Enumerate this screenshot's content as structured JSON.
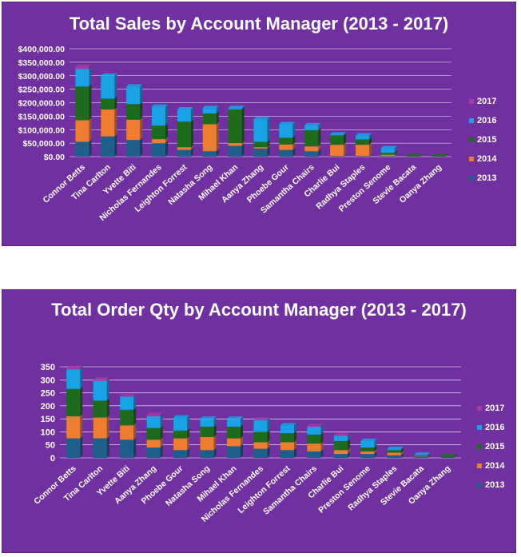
{
  "chart_data": [
    {
      "type": "bar",
      "stacked": true,
      "title": "Total Sales by Account Manager (2013 - 2017)",
      "categories": [
        "Connor Betts",
        "Tina Carlton",
        "Yvette Biti",
        "Nicholas Fernandes",
        "Leighton Forrest",
        "Natasha Song",
        "Mihael Khan",
        "Aanya Zhang",
        "Phoebe Gour",
        "Samantha Chairs",
        "Charlie Bui",
        "Radhya Staples",
        "Preston Senome",
        "Stevie Bacata",
        "Oanya Zhang"
      ],
      "ylim": [
        0,
        400000
      ],
      "yticks": [
        0,
        50000,
        100000,
        150000,
        200000,
        250000,
        300000,
        350000,
        400000
      ],
      "ytick_labels": [
        "$0.00",
        "$50,000.00",
        "$100,000.00",
        "$150,000.00",
        "$200,000.00",
        "$250,000.00",
        "$300,000.00",
        "$350,000.00",
        "$400,000.00"
      ],
      "series": [
        {
          "name": "2013",
          "values": [
            55000,
            75000,
            62000,
            50000,
            25000,
            20000,
            40000,
            30000,
            25000,
            20000,
            2000,
            2000,
            2000,
            0,
            0
          ]
        },
        {
          "name": "2014",
          "values": [
            80000,
            100000,
            75000,
            15000,
            10000,
            100000,
            10000,
            5000,
            20000,
            18000,
            42000,
            42000,
            5000,
            0,
            0
          ]
        },
        {
          "name": "2015",
          "values": [
            125000,
            40000,
            58000,
            50000,
            95000,
            40000,
            125000,
            20000,
            25000,
            60000,
            35000,
            20000,
            7000,
            2000,
            2000
          ]
        },
        {
          "name": "2016",
          "values": [
            65000,
            85000,
            65000,
            70000,
            45000,
            20000,
            5000,
            83000,
            50000,
            18000,
            3000,
            14000,
            17000,
            0,
            0
          ]
        },
        {
          "name": "2017",
          "values": [
            8000,
            0,
            0,
            0,
            0,
            0,
            0,
            0,
            0,
            0,
            0,
            0,
            0,
            0,
            0
          ]
        }
      ],
      "legend_position": "right",
      "grid": true
    },
    {
      "type": "bar",
      "stacked": true,
      "title": "Total Order Qty by Account Manager (2013 - 2017)",
      "categories": [
        "Connor Betts",
        "Tina Carlton",
        "Yvette Biti",
        "Aanya Zhang",
        "Phoebe Gour",
        "Natasha Song",
        "Mihael Khan",
        "Nicholas Fernandes",
        "Leighton Forrest",
        "Samantha Chairs",
        "Charlie Bui",
        "Preston Senome",
        "Radhya Staples",
        "Stevie Bacata",
        "Oanya Zhang"
      ],
      "ylim": [
        0,
        350
      ],
      "yticks": [
        0,
        50,
        100,
        150,
        200,
        250,
        300,
        350
      ],
      "ytick_labels": [
        "0",
        "50",
        "100",
        "150",
        "200",
        "250",
        "300",
        "350"
      ],
      "series": [
        {
          "name": "2013",
          "values": [
            75,
            75,
            70,
            40,
            30,
            30,
            45,
            35,
            30,
            25,
            15,
            15,
            10,
            5,
            2
          ]
        },
        {
          "name": "2014",
          "values": [
            85,
            80,
            55,
            30,
            45,
            50,
            30,
            25,
            30,
            30,
            15,
            10,
            10,
            2,
            0
          ]
        },
        {
          "name": "2015",
          "values": [
            105,
            65,
            60,
            45,
            30,
            40,
            45,
            40,
            35,
            35,
            35,
            15,
            10,
            3,
            3
          ]
        },
        {
          "name": "2016",
          "values": [
            75,
            75,
            50,
            45,
            50,
            30,
            30,
            45,
            30,
            30,
            20,
            25,
            5,
            2,
            0
          ]
        },
        {
          "name": "2017",
          "values": [
            5,
            5,
            2,
            5,
            0,
            0,
            0,
            2,
            0,
            2,
            2,
            0,
            0,
            0,
            0
          ]
        }
      ],
      "legend_position": "right",
      "grid": true
    }
  ],
  "colors": {
    "2013": "#1f5f8b",
    "2014": "#ed7d31",
    "2015": "#1e6b1e",
    "2016": "#19a3e6",
    "2017": "#a63aa6",
    "panel": "#7030a0",
    "gridline": "#ffffff",
    "text": "#ffffff"
  },
  "legend_labels": [
    "2017",
    "2016",
    "2015",
    "2014",
    "2013"
  ]
}
